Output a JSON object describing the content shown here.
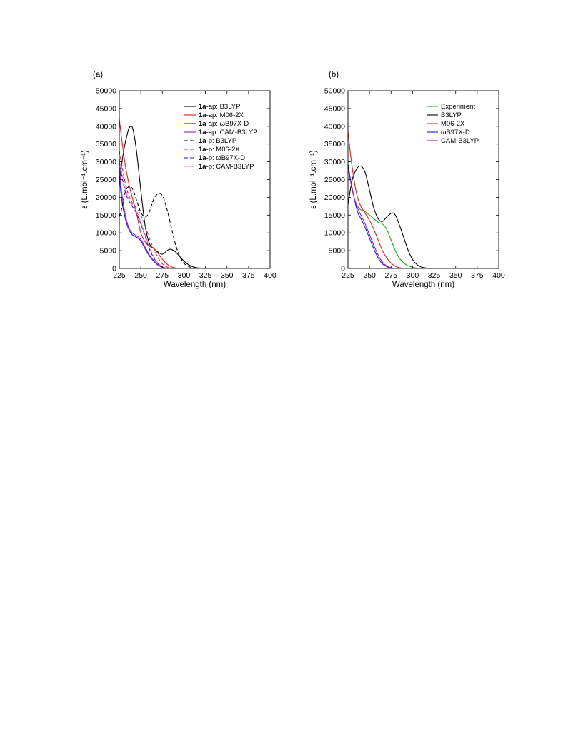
{
  "chart_data": [
    {
      "type": "line",
      "panel_label": "(a)",
      "xlabel": "Wavelength (nm)",
      "ylabel": "ε (L.mol⁻¹.cm⁻¹)",
      "xlim": [
        225,
        400
      ],
      "ylim": [
        0,
        50000
      ],
      "xticks": [
        225,
        250,
        275,
        300,
        325,
        350,
        375,
        400
      ],
      "yticks": [
        0,
        5000,
        10000,
        15000,
        20000,
        25000,
        30000,
        35000,
        40000,
        45000,
        50000
      ],
      "grid": false,
      "legend_position": "top-right",
      "series": [
        {
          "name": "1a-ap: B3LYP",
          "bold_prefix": "1a",
          "rest": "-ap: B3LYP",
          "color": "#000000",
          "dashed": false,
          "x": [
            225,
            230,
            235,
            238,
            241,
            245,
            250,
            255,
            260,
            265,
            270,
            275,
            280,
            284,
            290,
            295,
            300,
            305,
            310,
            315,
            320,
            325,
            330,
            335,
            340
          ],
          "y": [
            24000,
            33000,
            38500,
            40000,
            39000,
            33000,
            22000,
            12000,
            7000,
            5600,
            4600,
            4000,
            4900,
            5400,
            4700,
            3400,
            2100,
            1100,
            500,
            200,
            60,
            20,
            10,
            5,
            0
          ]
        },
        {
          "name": "1a-ap: M06-2X",
          "bold_prefix": "1a",
          "rest": "-ap: M06-2X",
          "color": "#e02020",
          "dashed": false,
          "x": [
            225,
            228,
            232,
            236,
            240,
            245,
            250,
            255,
            260,
            265,
            270,
            275,
            280,
            285,
            290,
            295,
            300
          ],
          "y": [
            42000,
            36000,
            29000,
            24000,
            20000,
            15500,
            10000,
            7500,
            6200,
            5600,
            4200,
            2600,
            1300,
            500,
            150,
            40,
            0
          ]
        },
        {
          "name": "1a-ap: ωB97X-D",
          "bold_prefix": "1a",
          "rest": "-ap: ωB97X-D",
          "color": "#1a1ae0",
          "dashed": false,
          "x": [
            225,
            228,
            232,
            236,
            240,
            245,
            250,
            255,
            260,
            265,
            270,
            275,
            280,
            285,
            290
          ],
          "y": [
            26000,
            19000,
            14000,
            11000,
            9500,
            8800,
            7800,
            5500,
            3500,
            2000,
            900,
            300,
            80,
            20,
            0
          ]
        },
        {
          "name": "1a-ap: CAM-B3LYP",
          "bold_prefix": "1a",
          "rest": "-ap: CAM-B3LYP",
          "color": "#9a20c0",
          "dashed": false,
          "x": [
            225,
            228,
            232,
            236,
            240,
            245,
            250,
            255,
            260,
            265,
            270,
            275,
            280,
            285,
            290
          ],
          "y": [
            29000,
            21000,
            15000,
            11500,
            10000,
            9200,
            8200,
            6000,
            3800,
            2200,
            1000,
            350,
            90,
            20,
            0
          ]
        },
        {
          "name": "1a-p: B3LYP",
          "bold_prefix": "1a",
          "rest": "-p: B3LYP",
          "color": "#000000",
          "dashed": true,
          "x": [
            225,
            228,
            232,
            236,
            240,
            244,
            248,
            252,
            256,
            260,
            265,
            270,
            275,
            280,
            285,
            290,
            295,
            300,
            305,
            310,
            315,
            320,
            325
          ],
          "y": [
            14500,
            17000,
            21500,
            23000,
            22500,
            20000,
            17000,
            15000,
            14500,
            16000,
            19500,
            21000,
            20500,
            17000,
            12000,
            7000,
            3500,
            1500,
            600,
            200,
            60,
            10,
            0
          ]
        },
        {
          "name": "1a-p: M06-2X",
          "bold_prefix": "1a",
          "rest": "-p: M06-2X",
          "color": "#e02020",
          "dashed": true,
          "x": [
            225,
            228,
            232,
            236,
            240,
            245,
            250,
            255,
            260,
            265,
            270,
            275,
            280,
            285,
            290
          ],
          "y": [
            33000,
            29000,
            24000,
            20500,
            18500,
            17000,
            15000,
            12000,
            8500,
            5500,
            3000,
            1300,
            450,
            120,
            0
          ]
        },
        {
          "name": "1a-p: ωB97X-D",
          "bold_prefix": "1a",
          "rest": "-p: ωB97X-D",
          "color": "#1a1ae0",
          "dashed": true,
          "x": [
            225,
            228,
            232,
            236,
            240,
            245,
            250,
            255,
            260,
            265,
            270,
            275,
            280,
            285
          ],
          "y": [
            30000,
            26000,
            21500,
            19000,
            17500,
            15500,
            12500,
            9000,
            5500,
            3000,
            1300,
            450,
            100,
            0
          ]
        },
        {
          "name": "1a-p: CAM-B3LYP",
          "bold_prefix": "1a",
          "rest": "-p: CAM-B3LYP",
          "color": "#f050e0",
          "dashed": true,
          "x": [
            225,
            228,
            232,
            236,
            240,
            245,
            250,
            255,
            260,
            265,
            270,
            275,
            280,
            285
          ],
          "y": [
            31000,
            27000,
            22500,
            19500,
            18000,
            16000,
            13000,
            9500,
            6000,
            3300,
            1500,
            500,
            120,
            0
          ]
        }
      ]
    },
    {
      "type": "line",
      "panel_label": "(b)",
      "xlabel": "Wavelength (nm)",
      "ylabel": "ε (L.mol⁻¹.cm⁻¹)",
      "xlim": [
        225,
        400
      ],
      "ylim": [
        0,
        50000
      ],
      "xticks": [
        225,
        250,
        275,
        300,
        325,
        350,
        375,
        400
      ],
      "yticks": [
        0,
        5000,
        10000,
        15000,
        20000,
        25000,
        30000,
        35000,
        40000,
        45000,
        50000
      ],
      "grid": false,
      "legend_position": "top-right",
      "series": [
        {
          "name": "Experiment",
          "bold_prefix": "",
          "rest": "Experiment",
          "color": "#20a020",
          "dashed": false,
          "x": [
            225,
            230,
            235,
            240,
            245,
            250,
            255,
            260,
            265,
            270,
            275,
            280,
            285,
            290,
            295,
            300,
            305,
            310,
            320,
            330,
            350,
            400
          ],
          "y": [
            29500,
            22000,
            18000,
            16500,
            16000,
            15000,
            14000,
            13000,
            12500,
            11000,
            8000,
            5000,
            2800,
            1500,
            700,
            300,
            100,
            30,
            0,
            0,
            0,
            0
          ]
        },
        {
          "name": "B3LYP",
          "bold_prefix": "",
          "rest": "B3LYP",
          "color": "#000000",
          "dashed": false,
          "x": [
            225,
            230,
            235,
            240,
            245,
            250,
            255,
            260,
            265,
            270,
            276,
            280,
            285,
            290,
            295,
            300,
            305,
            310,
            315,
            320,
            325,
            330,
            340,
            350,
            400
          ],
          "y": [
            18000,
            25000,
            28000,
            28800,
            27000,
            22000,
            17000,
            14000,
            13200,
            14500,
            15600,
            15000,
            12000,
            8500,
            5000,
            2500,
            1100,
            400,
            150,
            40,
            10,
            0,
            0,
            0,
            0
          ]
        },
        {
          "name": "M06-2X",
          "bold_prefix": "",
          "rest": "M06-2X",
          "color": "#e02020",
          "dashed": false,
          "x": [
            225,
            228,
            232,
            236,
            240,
            245,
            250,
            255,
            260,
            265,
            270,
            275,
            280,
            285,
            290,
            295,
            300,
            310,
            400
          ],
          "y": [
            38500,
            32000,
            25000,
            20000,
            17500,
            15500,
            13500,
            11000,
            8000,
            5000,
            3000,
            1500,
            600,
            200,
            60,
            10,
            0,
            0,
            0
          ]
        },
        {
          "name": "ωB97X-D",
          "bold_prefix": "",
          "rest": "ωB97X-D",
          "color": "#1a1ae0",
          "dashed": false,
          "x": [
            225,
            228,
            232,
            236,
            240,
            245,
            250,
            255,
            260,
            265,
            270,
            275,
            280,
            290,
            400
          ],
          "y": [
            29000,
            25000,
            20000,
            16000,
            14000,
            11500,
            8500,
            5500,
            3000,
            1300,
            500,
            150,
            30,
            0,
            0
          ]
        },
        {
          "name": "CAM-B3LYP",
          "bold_prefix": "",
          "rest": "CAM-B3LYP",
          "color": "#9a20c0",
          "dashed": false,
          "x": [
            225,
            228,
            232,
            236,
            240,
            245,
            250,
            255,
            260,
            265,
            270,
            275,
            280,
            290,
            400
          ],
          "y": [
            28000,
            24500,
            20000,
            17000,
            15000,
            12500,
            9500,
            6500,
            3800,
            1800,
            700,
            200,
            50,
            0,
            0
          ]
        }
      ]
    }
  ]
}
